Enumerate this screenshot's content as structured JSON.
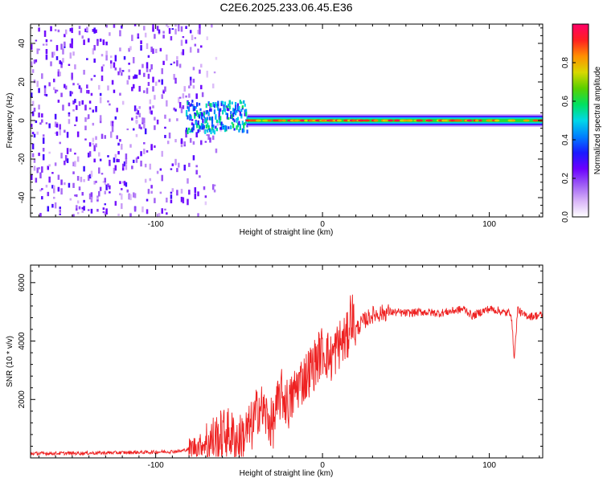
{
  "title": "C2E6.2025.233.06.45.E36",
  "chart_data": [
    {
      "type": "heatmap",
      "name": "spectrogram",
      "xlabel": "Height of straight line (km)",
      "ylabel": "Frequency (Hz)",
      "xlim": [
        -175,
        132
      ],
      "ylim": [
        -50,
        50
      ],
      "xticks": [
        -100,
        0,
        100
      ],
      "yticks": [
        -40,
        -20,
        0,
        20,
        40
      ],
      "colorbar": {
        "label": "Normalized spectral amplitude",
        "range": [
          0,
          1
        ],
        "ticks": [
          0.0,
          0.2,
          0.4,
          0.6,
          0.8
        ],
        "colors": [
          "#ffffff",
          "#d8b4f8",
          "#9e5cf5",
          "#6b00ff",
          "#1a1aff",
          "#0080ff",
          "#00d8e8",
          "#00e060",
          "#5ad000",
          "#d8d800",
          "#ff9000",
          "#ff2020",
          "#ff0068"
        ]
      },
      "features": [
        {
          "label": "noise region",
          "x_range": [
            -175,
            -80
          ],
          "freq_range": [
            -50,
            50
          ],
          "amplitude": 0.25
        },
        {
          "label": "signal onset",
          "x_range": [
            -82,
            -45
          ],
          "center_freq": 2,
          "amplitude": 0.55
        },
        {
          "label": "carrier line",
          "x_range": [
            -45,
            132
          ],
          "center_freq": 0,
          "half_width_hz": 3,
          "amplitude": 0.95
        }
      ]
    },
    {
      "type": "line",
      "name": "snr",
      "xlabel": "Height of straight line (km)",
      "ylabel": "SNR (10 * v/v)",
      "xlim": [
        -175,
        132
      ],
      "ylim": [
        0,
        6600
      ],
      "xticks": [
        -100,
        0,
        100
      ],
      "yticks": [
        2000,
        4000,
        6000
      ],
      "color": "#ee2222",
      "series": [
        {
          "name": "SNR",
          "x": [
            -175,
            -150,
            -120,
            -100,
            -85,
            -78,
            -70,
            -62,
            -58,
            -50,
            -42,
            -38,
            -30,
            -25,
            -20,
            -15,
            -10,
            -5,
            0,
            5,
            10,
            15,
            17,
            20,
            25,
            30,
            40,
            50,
            60,
            70,
            80,
            85,
            90,
            95,
            100,
            105,
            110,
            113,
            115,
            117,
            120,
            125,
            132
          ],
          "y": [
            150,
            160,
            180,
            200,
            230,
            350,
            500,
            700,
            900,
            600,
            1100,
            1800,
            1100,
            2200,
            1800,
            2500,
            2800,
            3200,
            3700,
            3400,
            3900,
            4100,
            5000,
            4400,
            4700,
            4900,
            5000,
            4950,
            5000,
            4950,
            5050,
            5100,
            4850,
            5000,
            5100,
            5050,
            4950,
            5000,
            3400,
            5100,
            4900,
            4850,
            4900
          ]
        }
      ]
    }
  ]
}
